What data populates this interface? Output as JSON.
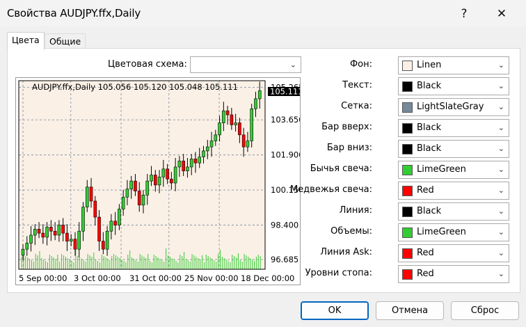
{
  "window": {
    "title": "Свойства AUDJPY.ffx,Daily",
    "help_icon": "?",
    "close_icon": "✕"
  },
  "tabs": [
    {
      "label": "Цвета",
      "active": true
    },
    {
      "label": "Общие",
      "active": false
    }
  ],
  "scheme": {
    "label": "Цветовая схема:",
    "value": ""
  },
  "chart_preview": {
    "header": "AUDJPY.ffx,Daily  105.056 105.120 105.048 105.111",
    "price_axis": [
      "105.265",
      "103.650",
      "101.900",
      "100.150",
      "98.400",
      "96.685"
    ],
    "current_price": "105.111",
    "date_axis": [
      "5 Sep 00:00",
      "3 Oct 00:00",
      "31 Oct 00:00",
      "25 Nov 00:00",
      "18 Dec 00:00"
    ],
    "colors": {
      "background": "#faf0e6",
      "text": "#000000",
      "grid": "#778899",
      "bull": "#32cd32",
      "bear": "#ff0000",
      "bar": "#000000",
      "volume": "#32cd32"
    }
  },
  "chart_data": {
    "type": "candlestick",
    "x_ticks": [
      "5 Sep 00:00",
      "3 Oct 00:00",
      "31 Oct 00:00",
      "25 Nov 00:00",
      "18 Dec 00:00"
    ],
    "y_ticks": [
      105.265,
      103.65,
      101.9,
      100.15,
      98.4,
      96.685
    ],
    "ylim": [
      96.2,
      105.6
    ],
    "last_close": 105.111,
    "closes": [
      97.2,
      97.5,
      97.9,
      98.2,
      98.0,
      97.8,
      98.3,
      98.1,
      97.9,
      98.4,
      98.0,
      97.6,
      97.7,
      97.2,
      98.1,
      99.3,
      100.3,
      99.6,
      98.8,
      97.6,
      97.2,
      98.1,
      98.6,
      98.4,
      99.2,
      99.8,
      100.2,
      100.6,
      100.1,
      99.4,
      99.9,
      100.6,
      100.9,
      100.4,
      100.8,
      101.2,
      100.7,
      100.5,
      101.3,
      101.6,
      101.1,
      101.3,
      101.7,
      101.5,
      101.8,
      102.1,
      102.3,
      102.6,
      102.9,
      103.5,
      104.1,
      103.9,
      103.4,
      103.5,
      102.9,
      102.3,
      102.6,
      104.2,
      104.7,
      105.1
    ]
  },
  "properties": [
    {
      "label": "Фон:",
      "value": "Linen",
      "color": "#faf0e6"
    },
    {
      "label": "Текст:",
      "value": "Black",
      "color": "#000000"
    },
    {
      "label": "Сетка:",
      "value": "LightSlateGray",
      "color": "#778899"
    },
    {
      "label": "Бар вверх:",
      "value": "Black",
      "color": "#000000"
    },
    {
      "label": "Бар вниз:",
      "value": "Black",
      "color": "#000000"
    },
    {
      "label": "Бычья свеча:",
      "value": "LimeGreen",
      "color": "#32cd32"
    },
    {
      "label": "Медвежья свеча:",
      "value": "Red",
      "color": "#ff0000"
    },
    {
      "label": "Линия:",
      "value": "Black",
      "color": "#000000"
    },
    {
      "label": "Объемы:",
      "value": "LimeGreen",
      "color": "#32cd32"
    },
    {
      "label": "Линия Ask:",
      "value": "Red",
      "color": "#ff0000"
    },
    {
      "label": "Уровни стопа:",
      "value": "Red",
      "color": "#ff0000"
    }
  ],
  "buttons": {
    "ok": "OK",
    "cancel": "Отмена",
    "reset": "Сброс"
  }
}
